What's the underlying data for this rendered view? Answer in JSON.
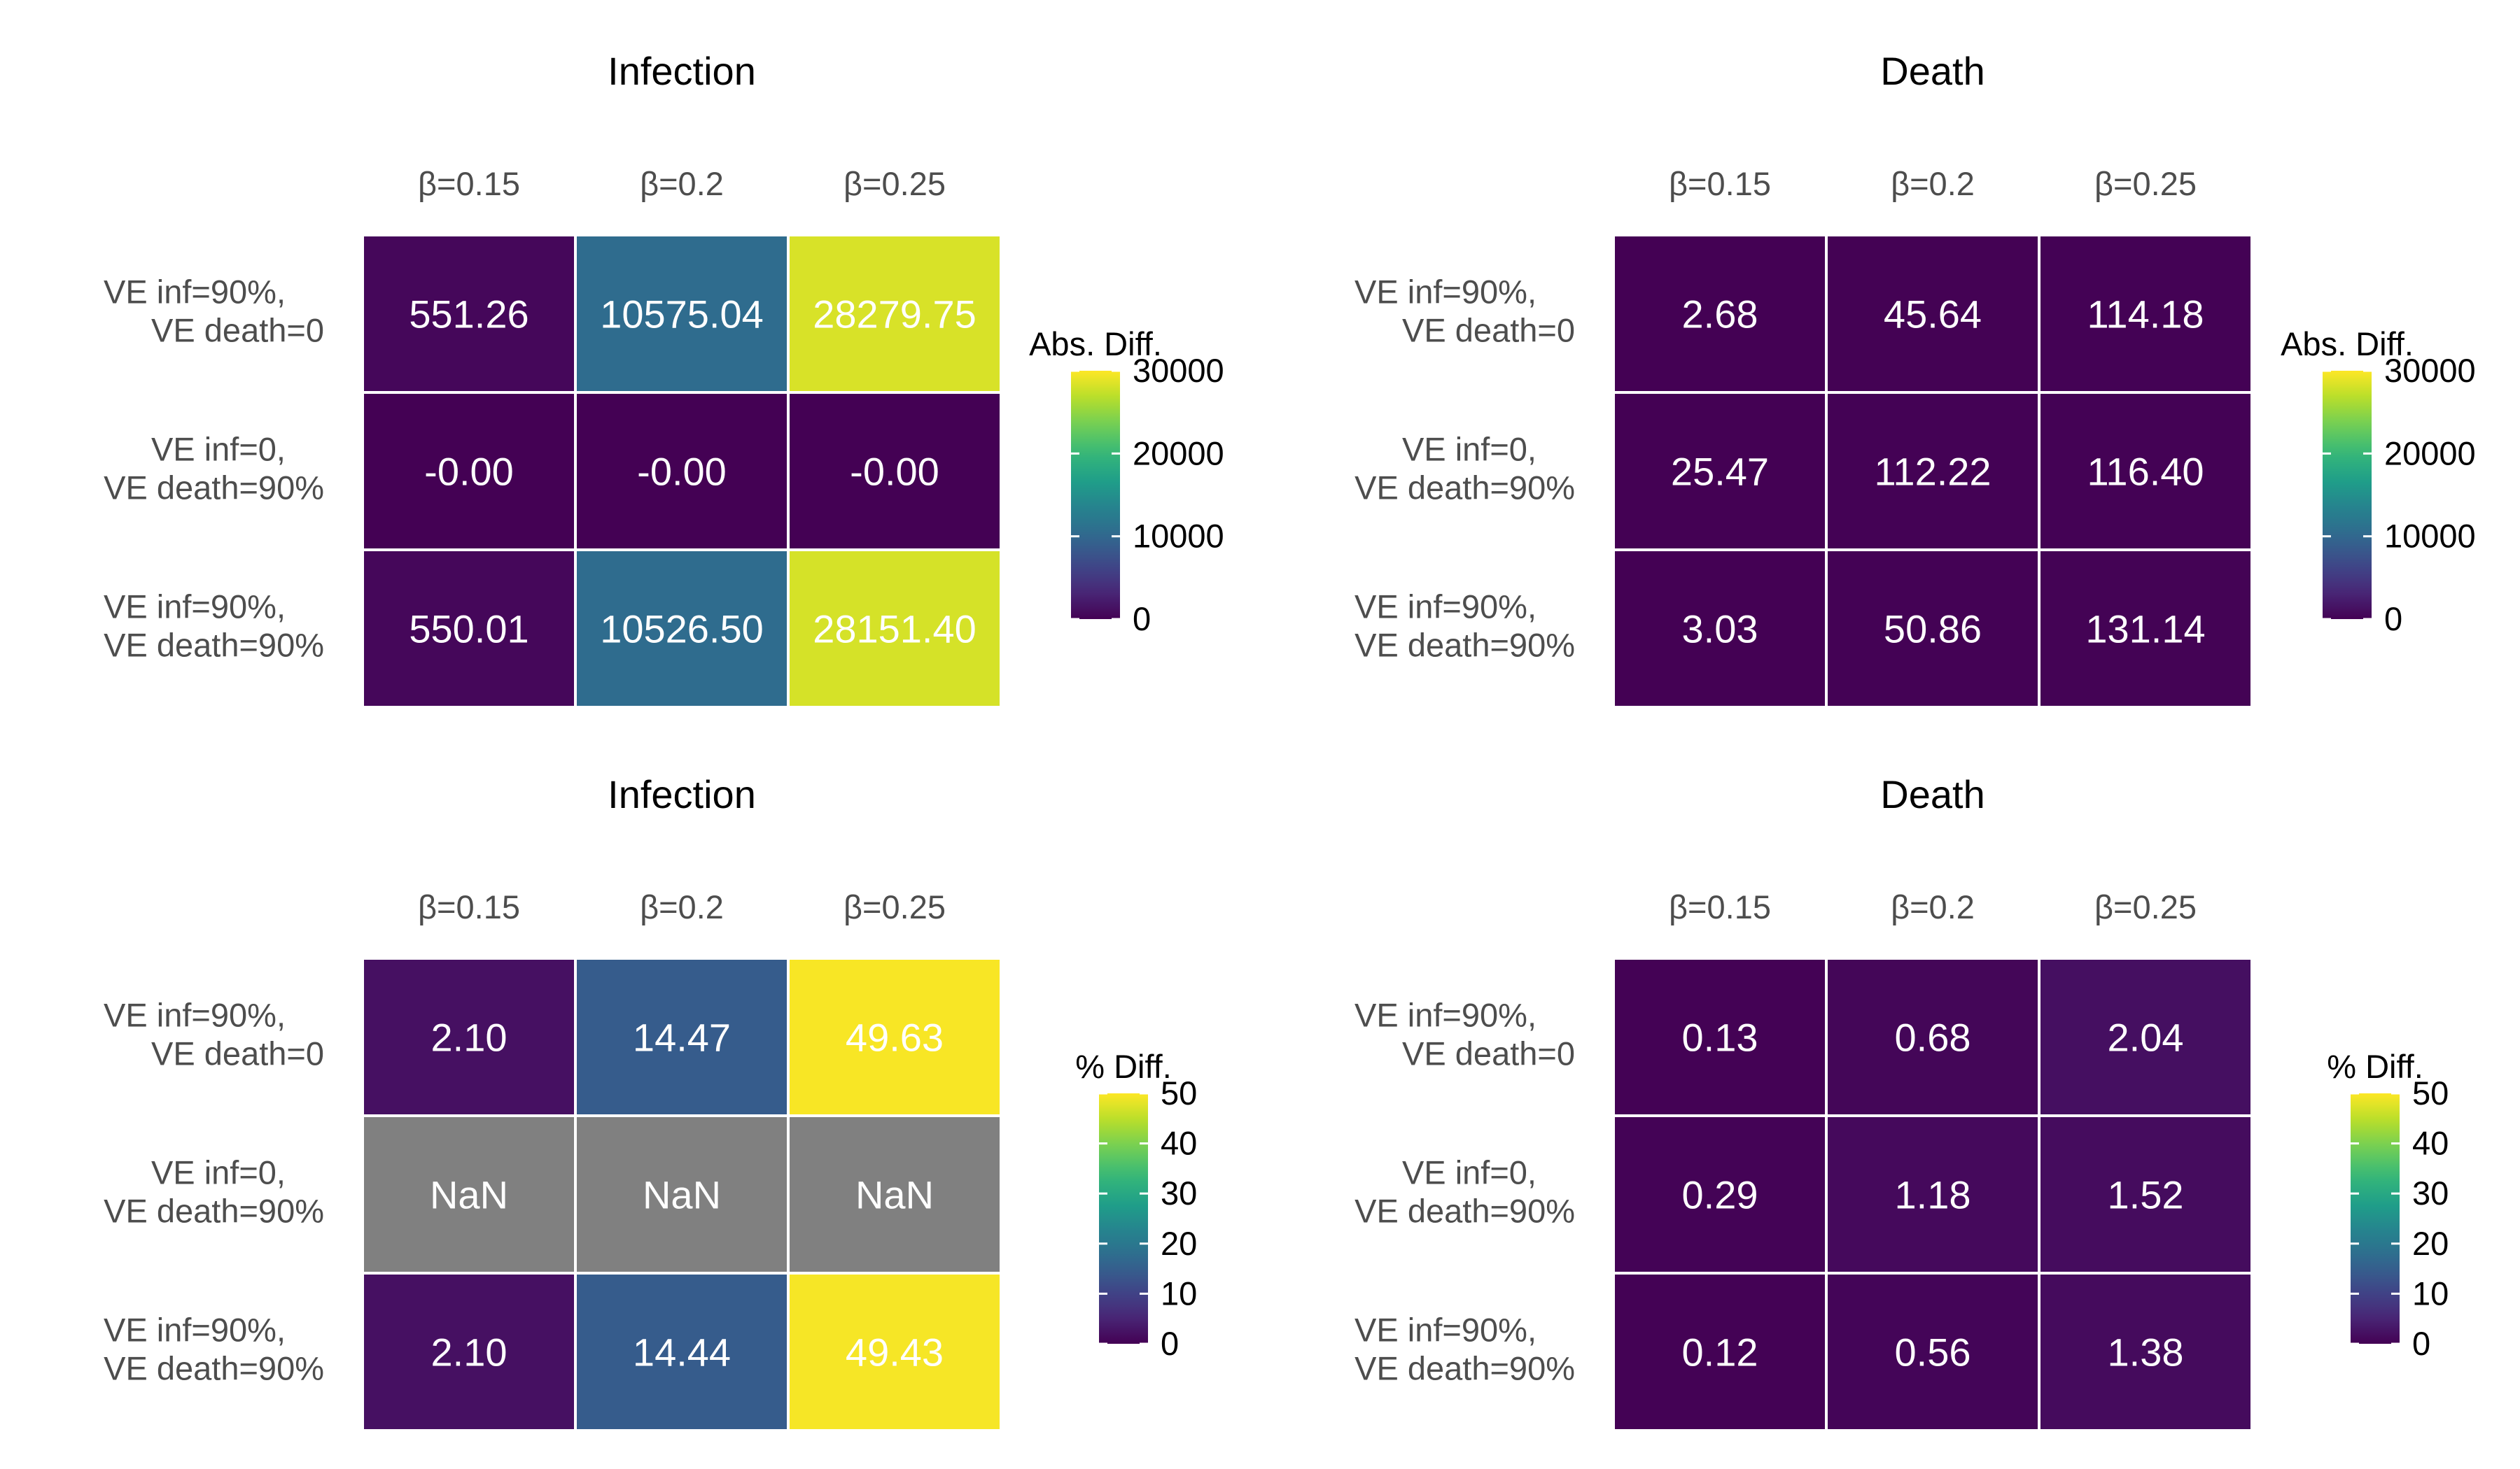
{
  "row_labels": [
    [
      "VE inf=90%,",
      "VE death=0"
    ],
    [
      "VE inf=0,",
      "VE death=90%"
    ],
    [
      "VE inf=90%,",
      "VE death=90%"
    ]
  ],
  "column_labels": [
    "β=0.15",
    "β=0.2",
    "β=0.25"
  ],
  "colors": {
    "viridis": [
      "#440154",
      "#482878",
      "#3e4989",
      "#31688e",
      "#26828e",
      "#1f9e89",
      "#35b779",
      "#6ece58",
      "#b5de2b",
      "#fde725"
    ],
    "na": "#808080",
    "cell_border": "#ffffff",
    "cell_text": "#ffffff",
    "axis_text": "#4d4d4d",
    "title_text": "#000000"
  },
  "chart_data": [
    {
      "type": "heatmap",
      "title": "Infection",
      "x": [
        "β=0.15",
        "β=0.2",
        "β=0.25"
      ],
      "y": [
        "VE inf=90%, VE death=0",
        "VE inf=0, VE death=90%",
        "VE inf=90%, VE death=90%"
      ],
      "values": [
        [
          551.26,
          10575.04,
          28279.75
        ],
        [
          -0.0,
          -0.0,
          -0.0
        ],
        [
          550.01,
          10526.5,
          28151.4
        ]
      ],
      "labels": [
        [
          "551.26",
          "10575.04",
          "28279.75"
        ],
        [
          "-0.00",
          "-0.00",
          "-0.00"
        ],
        [
          "550.01",
          "10526.50",
          "28151.40"
        ]
      ],
      "legend": {
        "title": "Abs. Diff.",
        "min": 0,
        "max": 30000,
        "ticks": [
          "30000",
          "20000",
          "10000",
          "0"
        ],
        "tick_values": [
          30000,
          20000,
          10000,
          0
        ]
      }
    },
    {
      "type": "heatmap",
      "title": "Death",
      "x": [
        "β=0.15",
        "β=0.2",
        "β=0.25"
      ],
      "y": [
        "VE inf=90%, VE death=0",
        "VE inf=0, VE death=90%",
        "VE inf=90%, VE death=90%"
      ],
      "values": [
        [
          2.68,
          45.64,
          114.18
        ],
        [
          25.47,
          112.22,
          116.4
        ],
        [
          3.03,
          50.86,
          131.14
        ]
      ],
      "labels": [
        [
          "2.68",
          "45.64",
          "114.18"
        ],
        [
          "25.47",
          "112.22",
          "116.40"
        ],
        [
          "3.03",
          "50.86",
          "131.14"
        ]
      ],
      "legend": {
        "title": "Abs. Diff.",
        "min": 0,
        "max": 30000,
        "ticks": [
          "30000",
          "20000",
          "10000",
          "0"
        ],
        "tick_values": [
          30000,
          20000,
          10000,
          0
        ]
      }
    },
    {
      "type": "heatmap",
      "title": "Infection",
      "x": [
        "β=0.15",
        "β=0.2",
        "β=0.25"
      ],
      "y": [
        "VE inf=90%, VE death=0",
        "VE inf=0, VE death=90%",
        "VE inf=90%, VE death=90%"
      ],
      "values": [
        [
          2.1,
          14.47,
          49.63
        ],
        [
          null,
          null,
          null
        ],
        [
          2.1,
          14.44,
          49.43
        ]
      ],
      "labels": [
        [
          "2.10",
          "14.47",
          "49.63"
        ],
        [
          "NaN",
          "NaN",
          "NaN"
        ],
        [
          "2.10",
          "14.44",
          "49.43"
        ]
      ],
      "legend": {
        "title": "% Diff.",
        "min": 0,
        "max": 50,
        "ticks": [
          "50",
          "40",
          "30",
          "20",
          "10",
          "0"
        ],
        "tick_values": [
          50,
          40,
          30,
          20,
          10,
          0
        ]
      }
    },
    {
      "type": "heatmap",
      "title": "Death",
      "x": [
        "β=0.15",
        "β=0.2",
        "β=0.25"
      ],
      "y": [
        "VE inf=90%, VE death=0",
        "VE inf=0, VE death=90%",
        "VE inf=90%, VE death=90%"
      ],
      "values": [
        [
          0.13,
          0.68,
          2.04
        ],
        [
          0.29,
          1.18,
          1.52
        ],
        [
          0.12,
          0.56,
          1.38
        ]
      ],
      "labels": [
        [
          "0.13",
          "0.68",
          "2.04"
        ],
        [
          "0.29",
          "1.18",
          "1.52"
        ],
        [
          "0.12",
          "0.56",
          "1.38"
        ]
      ],
      "legend": {
        "title": "% Diff.",
        "min": 0,
        "max": 50,
        "ticks": [
          "50",
          "40",
          "30",
          "20",
          "10",
          "0"
        ],
        "tick_values": [
          50,
          40,
          30,
          20,
          10,
          0
        ]
      }
    }
  ]
}
